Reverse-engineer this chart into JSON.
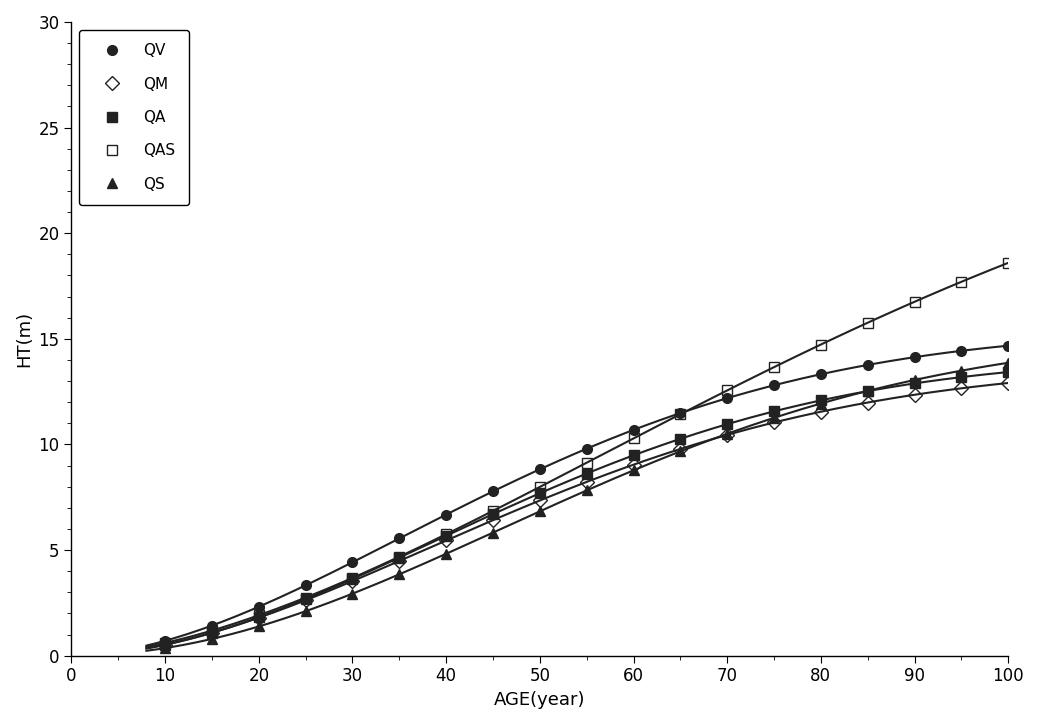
{
  "title": "",
  "xlabel": "AGE(year)",
  "ylabel": "HT(m)",
  "xlim": [
    0,
    100
  ],
  "ylim": [
    0,
    30
  ],
  "xticks": [
    0,
    10,
    20,
    30,
    40,
    50,
    60,
    70,
    80,
    90,
    100
  ],
  "yticks": [
    0,
    5,
    10,
    15,
    20,
    25,
    30
  ],
  "series": [
    {
      "label": "QV",
      "marker": "o",
      "fillstyle": "full",
      "color": "#222222",
      "a": 15.5,
      "b": 55.0,
      "c": 1.8
    },
    {
      "label": "QM",
      "marker": "D",
      "fillstyle": "none",
      "color": "#222222",
      "a": 13.8,
      "b": 58.0,
      "c": 1.85
    },
    {
      "label": "QA",
      "marker": "s",
      "fillstyle": "full",
      "color": "#222222",
      "a": 14.2,
      "b": 57.0,
      "c": 1.9
    },
    {
      "label": "QAS",
      "marker": "s",
      "fillstyle": "none",
      "color": "#222222",
      "a": 28.0,
      "b": 95.0,
      "c": 1.7
    },
    {
      "label": "QS",
      "marker": "^",
      "fillstyle": "full",
      "color": "#222222",
      "a": 15.3,
      "b": 65.0,
      "c": 2.0
    }
  ],
  "t_start": 8,
  "marker_start": 10,
  "marker_interval": 5,
  "linewidth": 1.5,
  "markersize": 7,
  "background_color": "#ffffff",
  "legend_fontsize": 11,
  "axis_fontsize": 13,
  "tick_fontsize": 12
}
